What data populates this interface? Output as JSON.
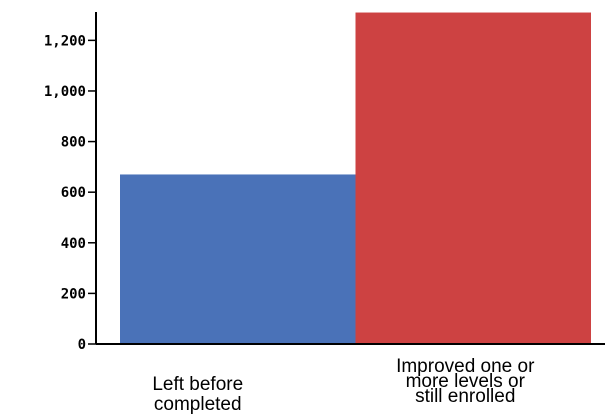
{
  "chart_data": {
    "type": "bar",
    "title": "",
    "xlabel": "",
    "ylabel": "",
    "categories": [
      "Left before completed",
      "Improved one or more levels or still enrolled"
    ],
    "category_label_lines": [
      [
        "Left before",
        "completed"
      ],
      [
        "Improved one or",
        "more levels or",
        "still enrolled"
      ]
    ],
    "values": [
      670,
      1310
    ],
    "ylim": [
      0,
      1320
    ],
    "yticks": [
      0,
      200,
      400,
      600,
      800,
      1000,
      1200
    ],
    "ytick_labels": [
      "0",
      "200",
      "400",
      "600",
      "800",
      "1,000",
      "1,200"
    ],
    "bar_colors": [
      "#4a72b8",
      "#cd4242"
    ],
    "axis_color": "#000000",
    "grid": false,
    "legend": "none"
  }
}
